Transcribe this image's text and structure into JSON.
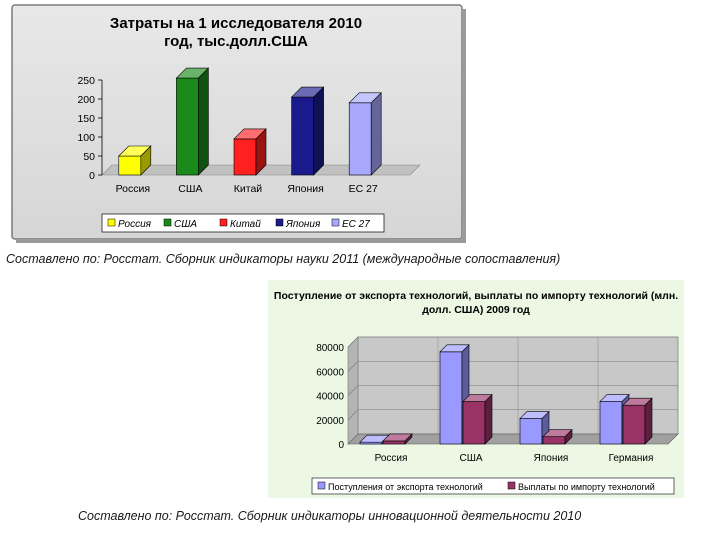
{
  "colors": {
    "chart1_plot_bg": "#c0c0c0",
    "chart2_plot_bg": "#c8c8c8",
    "chart2_frame_bg": "#ecf7e4",
    "chart2_series": [
      "#9999ff",
      "#993366"
    ]
  },
  "captions": {
    "first": "Составлено по: Росстат. Сборник индикаторы науки 2011 (международные сопоставления)",
    "second": "Составлено по: Росстат. Сборник индикаторы инновационной деятельности 2010"
  },
  "chart_data": [
    {
      "type": "bar",
      "title": "Затраты на 1 исследователя 2010 год, тыс.долл.США",
      "categories": [
        "Россия",
        "США",
        "Китай",
        "Япония",
        "ЕС 27"
      ],
      "values": [
        50,
        255,
        95,
        205,
        190
      ],
      "colors": [
        "#ffff00",
        "#1a8a1a",
        "#ff2020",
        "#1a1a8c",
        "#a8a8ff"
      ],
      "ylim": [
        0,
        250
      ],
      "yticks": [
        "0",
        "50",
        "100",
        "150",
        "200",
        "250"
      ],
      "legend": [
        "Россия",
        "США",
        "Китай",
        "Япония",
        "ЕС 27"
      ],
      "legend_position": "bottom",
      "grid": false
    },
    {
      "type": "bar",
      "title": "Поступление от экспорта технологий, выплаты по импорту технологий (млн. долл. США) 2009 год",
      "categories": [
        "Россия",
        "США",
        "Япония",
        "Германия"
      ],
      "series": [
        {
          "name": "Поступления от экспорта технологий",
          "values": [
            1500,
            76000,
            21000,
            35000
          ]
        },
        {
          "name": "Выплаты по импорту технологий",
          "values": [
            2500,
            35000,
            6000,
            32000
          ]
        }
      ],
      "ylim": [
        0,
        80000
      ],
      "yticks": [
        "0",
        "20000",
        "40000",
        "60000",
        "80000"
      ],
      "legend_position": "bottom",
      "grid": true
    }
  ]
}
